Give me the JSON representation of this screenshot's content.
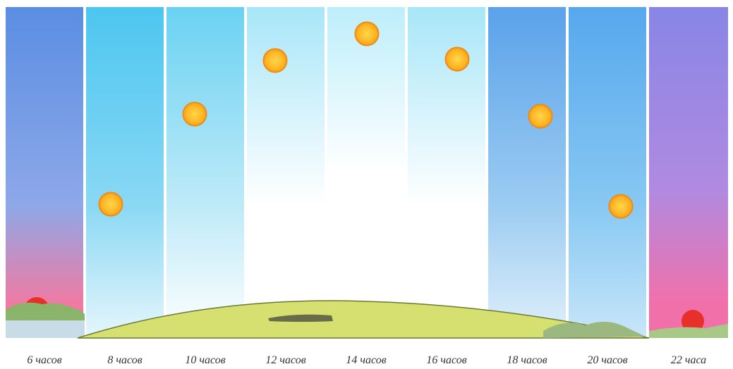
{
  "columns": [
    {
      "label": "6 часов"
    },
    {
      "label": "8 часов"
    },
    {
      "label": "10 часов"
    },
    {
      "label": "12 часов"
    },
    {
      "label": "14 часов"
    },
    {
      "label": "16 часов"
    },
    {
      "label": "18 часов"
    },
    {
      "label": "20 часов"
    },
    {
      "label": "22 часа"
    }
  ]
}
